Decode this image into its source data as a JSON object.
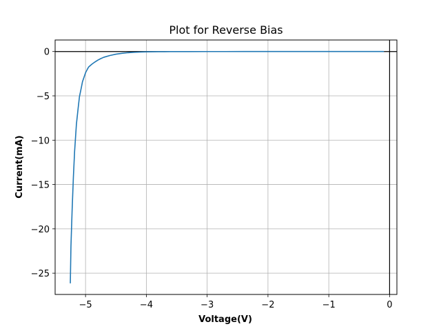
{
  "chart_data": {
    "type": "line",
    "title": "Plot for Reverse Bias",
    "xlabel": "Voltage(V)",
    "ylabel": "Current(mA)",
    "xlim": [
      -5.5,
      0.12
    ],
    "ylim": [
      -27.4,
      1.3
    ],
    "grid": true,
    "xticks": [
      -5,
      -4,
      -3,
      -2,
      -1,
      0
    ],
    "yticks": [
      0,
      -5,
      -10,
      -15,
      -20,
      -25
    ],
    "xtick_labels": [
      "−5",
      "−4",
      "−3",
      "−2",
      "−1",
      "0"
    ],
    "ytick_labels": [
      "0",
      "−5",
      "−10",
      "−15",
      "−20",
      "−25"
    ],
    "reference_lines": {
      "x": 0,
      "y": 0,
      "color": "#000000"
    },
    "series": [
      {
        "color": "#1f77b4",
        "x": [
          -5.25,
          -5.24,
          -5.22,
          -5.2,
          -5.18,
          -5.15,
          -5.12,
          -5.1,
          -5.07,
          -5.05,
          -5.02,
          -5.0,
          -4.97,
          -4.95,
          -4.9,
          -4.85,
          -4.8,
          -4.75,
          -4.7,
          -4.6,
          -4.5,
          -4.4,
          -4.3,
          -4.2,
          -4.1,
          -4.0,
          -3.9,
          -3.8,
          -3.7,
          -3.6,
          -3.5,
          -3.3,
          -3.0,
          -2.7,
          -2.4,
          -2.1,
          -1.8,
          -1.5,
          -1.2,
          -0.9,
          -0.6,
          -0.3,
          -0.1
        ],
        "y": [
          -26.1,
          -22.0,
          -17.8,
          -14.2,
          -11.3,
          -8.2,
          -6.3,
          -5.1,
          -4.1,
          -3.4,
          -2.8,
          -2.4,
          -2.0,
          -1.75,
          -1.45,
          -1.2,
          -0.98,
          -0.8,
          -0.65,
          -0.45,
          -0.3,
          -0.2,
          -0.13,
          -0.09,
          -0.06,
          -0.04,
          -0.03,
          -0.02,
          -0.015,
          -0.01,
          -0.008,
          -0.005,
          -0.003,
          -0.002,
          -0.0015,
          -0.001,
          -0.001,
          -0.0005,
          -0.0005,
          -0.0003,
          -0.0002,
          -0.0001,
          0
        ]
      }
    ]
  }
}
